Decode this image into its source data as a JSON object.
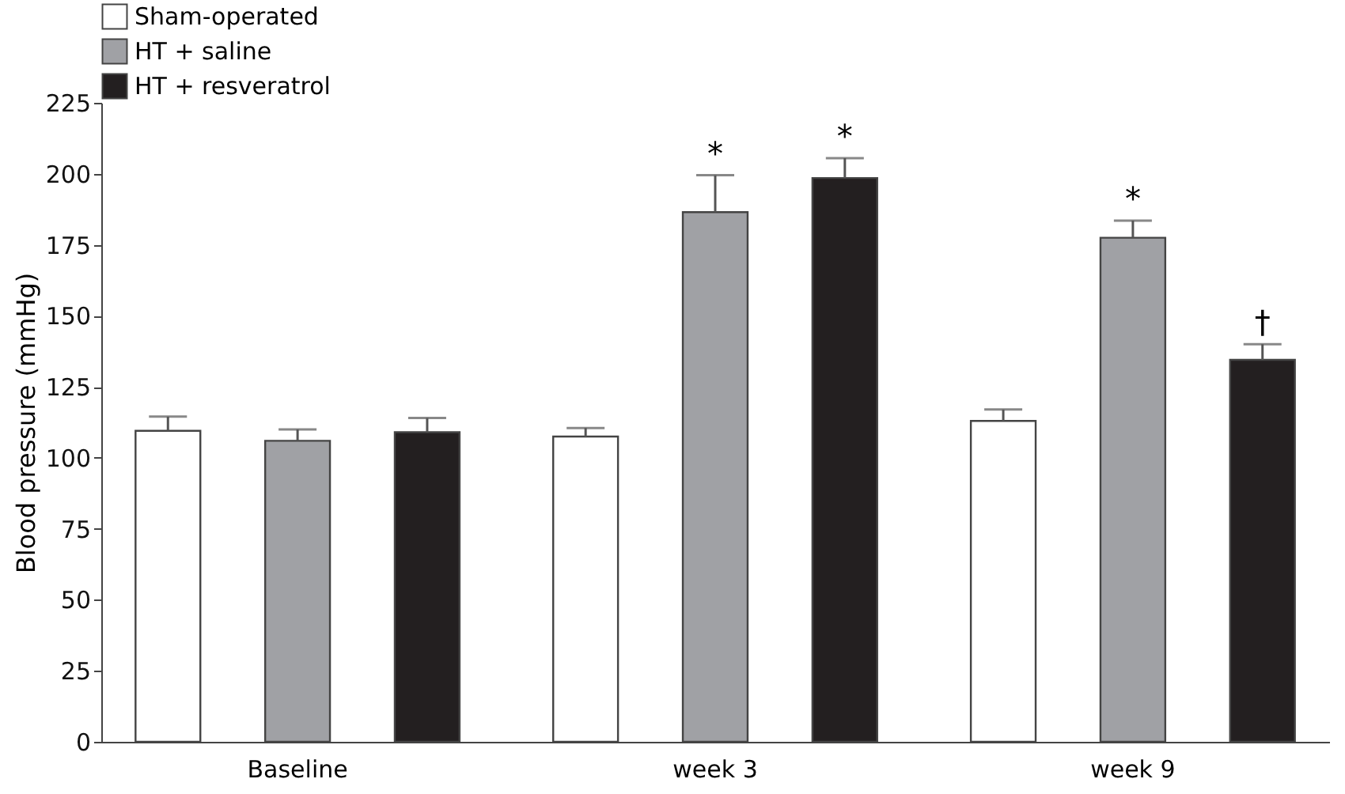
{
  "chart_data": {
    "type": "bar",
    "ylabel": "Blood pressure (mmHg)",
    "categories": [
      "Baseline",
      "week 3",
      "week 9"
    ],
    "series": [
      {
        "name": "Sham-operated",
        "color": "#ffffff",
        "values": [
          109.5,
          107.5,
          113
        ],
        "errors": [
          5,
          3,
          4
        ]
      },
      {
        "name": "HT + saline",
        "color": "#a0a1a5",
        "values": [
          106,
          186.5,
          177.5
        ],
        "errors": [
          4,
          13,
          6
        ],
        "value_labels": [
          null,
          "*",
          "*"
        ]
      },
      {
        "name": "HT + resveratrol",
        "color": "#231f20",
        "values": [
          109,
          198.5,
          134.5
        ],
        "errors": [
          5,
          7,
          5.5
        ],
        "value_labels": [
          null,
          "*",
          "†"
        ]
      }
    ],
    "ylim": [
      0,
      225
    ],
    "yticks": [
      0,
      25,
      50,
      75,
      100,
      125,
      150,
      175,
      200,
      225
    ],
    "grid": false,
    "legend": "top left"
  }
}
